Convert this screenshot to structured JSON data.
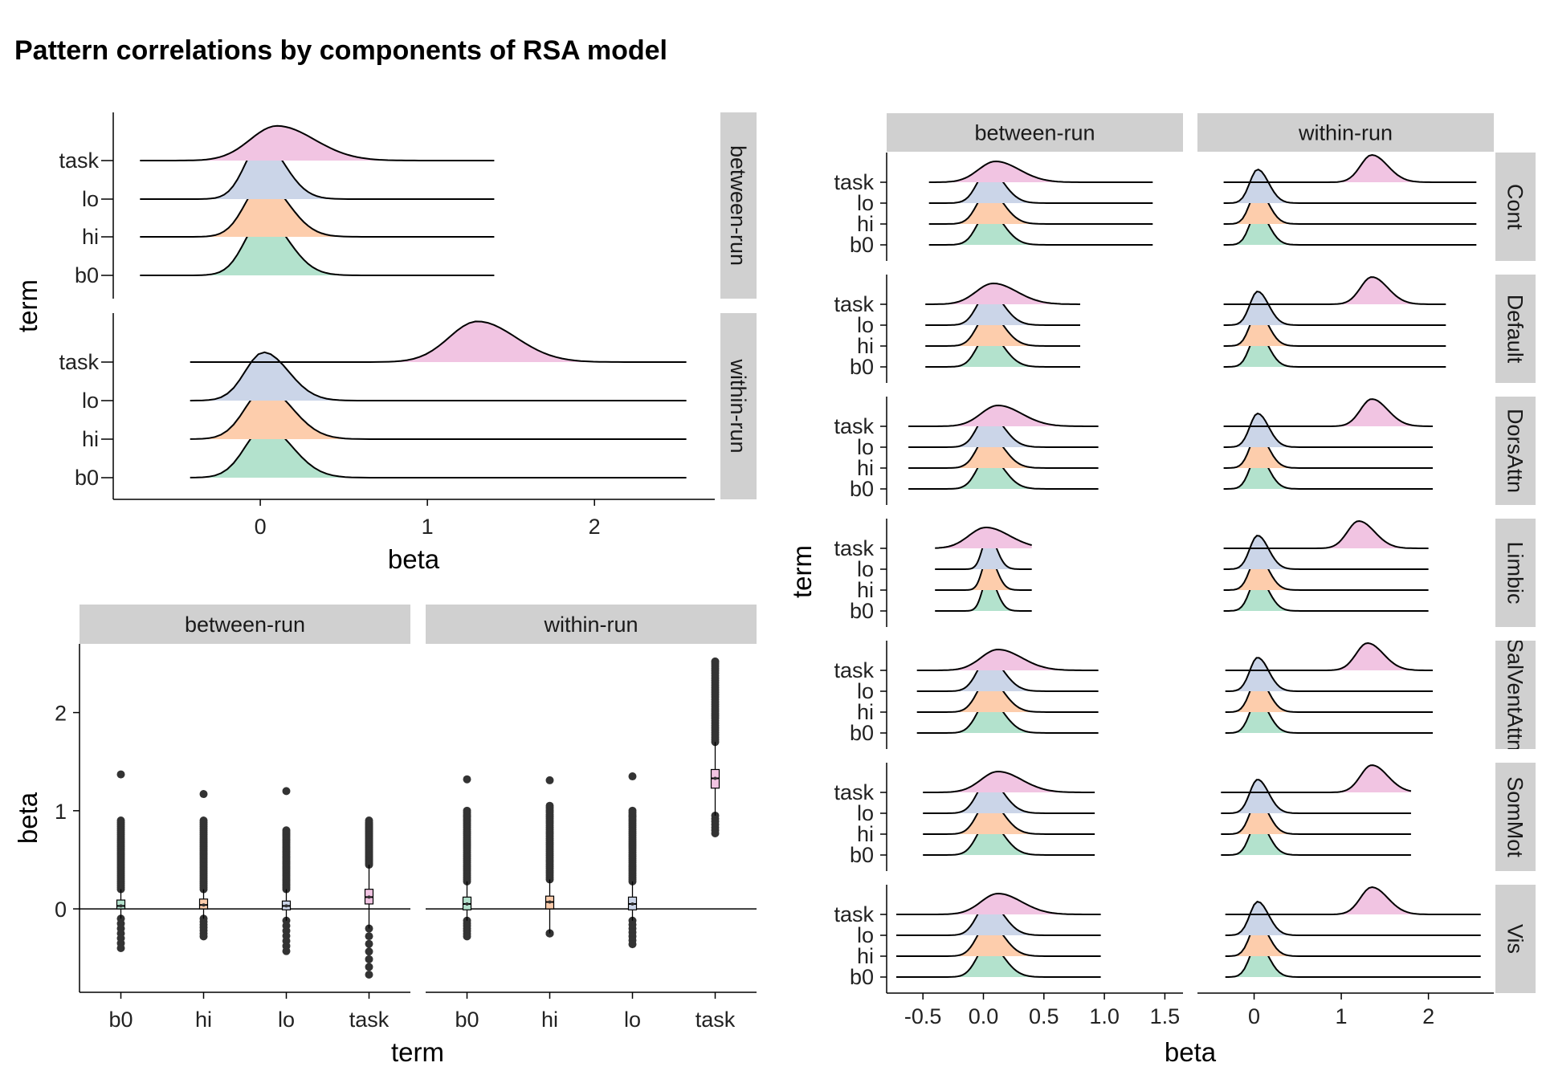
{
  "title": "Pattern correlations by components of RSA model",
  "colors": {
    "task": "#f1c4e2",
    "lo": "#cbd5e8",
    "hi": "#fdcdac",
    "b0": "#b3e2cd",
    "strip": "#d0d0d0",
    "line": "#000000",
    "outlier": "#333333"
  },
  "chart_data": [
    {
      "type": "ridgeline",
      "xlabel": "beta",
      "ylabel": "term",
      "xticks": [
        0,
        1,
        2
      ],
      "xlim": [
        -0.88,
        2.72
      ],
      "terms": [
        "b0",
        "hi",
        "lo",
        "task"
      ],
      "panels": [
        {
          "strip": "between-run",
          "range": [
            -0.72,
            1.4
          ],
          "densities": [
            {
              "term": "b0",
              "peak": 0.02,
              "sd": 0.11,
              "height": 1.0
            },
            {
              "term": "hi",
              "peak": 0.02,
              "sd": 0.11,
              "height": 0.95
            },
            {
              "term": "lo",
              "peak": 0.01,
              "sd": 0.1,
              "height": 1.0
            },
            {
              "term": "task",
              "peak": 0.1,
              "sd": 0.16,
              "height": 0.6
            }
          ]
        },
        {
          "strip": "within-run",
          "range": [
            -0.42,
            2.55
          ],
          "densities": [
            {
              "term": "b0",
              "peak": 0.03,
              "sd": 0.12,
              "height": 1.0
            },
            {
              "term": "hi",
              "peak": 0.03,
              "sd": 0.12,
              "height": 1.0
            },
            {
              "term": "lo",
              "peak": 0.02,
              "sd": 0.11,
              "height": 0.95
            },
            {
              "term": "task",
              "peak": 1.3,
              "sd": 0.17,
              "height": 0.8
            }
          ]
        }
      ]
    },
    {
      "type": "boxplot",
      "xlabel": "term",
      "ylabel": "beta",
      "ylim": [
        -0.85,
        2.7
      ],
      "yticks": [
        0,
        1,
        2
      ],
      "categories": [
        "b0",
        "hi",
        "lo",
        "task"
      ],
      "panels": [
        {
          "strip": "between-run",
          "boxes": [
            {
              "term": "b0",
              "q1": 0.0,
              "median": 0.03,
              "q3": 0.09,
              "whisker_low": -0.1,
              "whisker_high": 0.2,
              "outlier_low": -0.4,
              "outlier_high": 0.9,
              "outlier_max": 1.37
            },
            {
              "term": "hi",
              "q1": 0.0,
              "median": 0.04,
              "q3": 0.1,
              "whisker_low": -0.1,
              "whisker_high": 0.2,
              "outlier_low": -0.28,
              "outlier_high": 0.9,
              "outlier_max": 1.17
            },
            {
              "term": "lo",
              "q1": -0.01,
              "median": 0.03,
              "q3": 0.08,
              "whisker_low": -0.12,
              "whisker_high": 0.2,
              "outlier_low": -0.43,
              "outlier_high": 0.8,
              "outlier_max": 1.2
            },
            {
              "term": "task",
              "q1": 0.05,
              "median": 0.12,
              "q3": 0.2,
              "whisker_low": -0.2,
              "whisker_high": 0.45,
              "outlier_low": -0.67,
              "outlier_high": 0.88,
              "outlier_max": 0.9
            }
          ]
        },
        {
          "strip": "within-run",
          "boxes": [
            {
              "term": "b0",
              "q1": -0.01,
              "median": 0.05,
              "q3": 0.12,
              "whisker_low": -0.12,
              "whisker_high": 0.28,
              "outlier_low": -0.28,
              "outlier_high": 1.0,
              "outlier_max": 1.32
            },
            {
              "term": "hi",
              "q1": 0.0,
              "median": 0.07,
              "q3": 0.13,
              "whisker_low": -0.25,
              "whisker_high": 0.3,
              "outlier_low": -0.25,
              "outlier_high": 1.05,
              "outlier_max": 1.31
            },
            {
              "term": "lo",
              "q1": -0.01,
              "median": 0.05,
              "q3": 0.12,
              "whisker_low": -0.12,
              "whisker_high": 0.28,
              "outlier_low": -0.36,
              "outlier_high": 1.0,
              "outlier_max": 1.35
            },
            {
              "term": "task",
              "q1": 1.23,
              "median": 1.33,
              "q3": 1.42,
              "whisker_low": 0.95,
              "whisker_high": 1.7,
              "outlier_low": 0.77,
              "outlier_high": 2.52,
              "outlier_max": 2.52
            }
          ]
        }
      ]
    },
    {
      "type": "ridgeline",
      "xlabel": "beta",
      "ylabel": "term",
      "terms": [
        "b0",
        "hi",
        "lo",
        "task"
      ],
      "columns": [
        {
          "strip": "between-run",
          "xlim": [
            -0.8,
            1.65
          ],
          "xticks": [
            -0.5,
            0.0,
            0.5,
            1.0,
            1.5
          ],
          "tick_labels": [
            "-0.5",
            "0.0",
            "0.5",
            "1.0",
            "1.5"
          ]
        },
        {
          "strip": "within-run",
          "xlim": [
            -0.65,
            2.75
          ],
          "xticks": [
            0,
            1,
            2
          ],
          "tick_labels": [
            "0",
            "1",
            "2"
          ]
        }
      ],
      "rows": [
        {
          "strip": "Cont",
          "between": {
            "range": [
              -0.45,
              1.4
            ],
            "task_peak": 0.1
          },
          "within": {
            "range": [
              -0.35,
              2.55
            ],
            "task_peak": 1.35
          }
        },
        {
          "strip": "Default",
          "between": {
            "range": [
              -0.48,
              0.8
            ],
            "task_peak": 0.08
          },
          "within": {
            "range": [
              -0.35,
              2.2
            ],
            "task_peak": 1.35
          }
        },
        {
          "strip": "DorsAttn",
          "between": {
            "range": [
              -0.62,
              0.95
            ],
            "task_peak": 0.12
          },
          "within": {
            "range": [
              -0.35,
              2.05
            ],
            "task_peak": 1.35
          }
        },
        {
          "strip": "Limbic",
          "between": {
            "range": [
              -0.4,
              0.4
            ],
            "task_peak": 0.02
          },
          "within": {
            "range": [
              -0.35,
              2.0
            ],
            "task_peak": 1.2
          }
        },
        {
          "strip": "SalVentAttn",
          "between": {
            "range": [
              -0.55,
              0.95
            ],
            "task_peak": 0.12
          },
          "within": {
            "range": [
              -0.33,
              2.05
            ],
            "task_peak": 1.3
          }
        },
        {
          "strip": "SomMot",
          "between": {
            "range": [
              -0.5,
              0.92
            ],
            "task_peak": 0.12
          },
          "within": {
            "range": [
              -0.38,
              1.8
            ],
            "task_peak": 1.35
          }
        },
        {
          "strip": "Vis",
          "between": {
            "range": [
              -0.72,
              0.97
            ],
            "task_peak": 0.12
          },
          "within": {
            "range": [
              -0.33,
              2.6
            ],
            "task_peak": 1.35
          }
        }
      ]
    }
  ]
}
